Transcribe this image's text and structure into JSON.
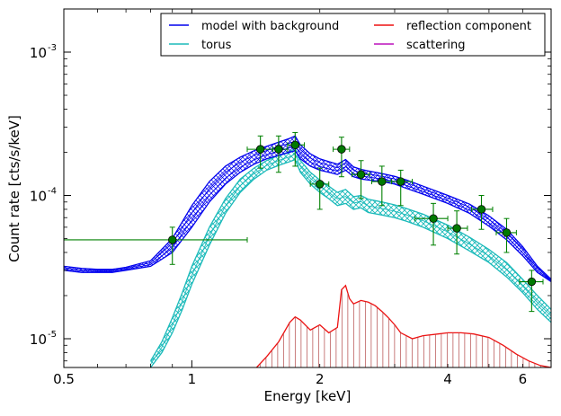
{
  "chart_data": {
    "type": "line",
    "xlabel": "Energy [keV]",
    "ylabel": "Count rate [cts/s/keV]",
    "xscale": "log",
    "yscale": "log",
    "xlim": [
      0.5,
      7.0
    ],
    "ylim": [
      6.3e-06,
      0.002
    ],
    "grid": false,
    "legend_placement": "top-right",
    "x_tick_labels": [
      {
        "value": 0.5,
        "label": "0.5"
      },
      {
        "value": 1,
        "label": "1"
      },
      {
        "value": 2,
        "label": "2"
      },
      {
        "value": 4,
        "label": "4"
      },
      {
        "value": 6,
        "label": "6"
      }
    ],
    "y_tick_labels": [
      {
        "value": 1e-05,
        "mant": "10",
        "exp": "-5"
      },
      {
        "value": 0.0001,
        "mant": "10",
        "exp": "-4"
      },
      {
        "value": 0.001,
        "mant": "10",
        "exp": "-3"
      }
    ],
    "legend": [
      {
        "label": "model with background",
        "color": "#0000ee"
      },
      {
        "label": "reflection component",
        "color": "#ee1111"
      },
      {
        "label": "torus",
        "color": "#1bbaba"
      },
      {
        "label": "scattering",
        "color": "#bb11bb"
      }
    ],
    "series": [
      {
        "name": "model with background",
        "color": "#0000ee",
        "x": [
          0.5,
          0.55,
          0.6,
          0.65,
          0.7,
          0.8,
          0.9,
          1.0,
          1.1,
          1.2,
          1.3,
          1.4,
          1.5,
          1.6,
          1.7,
          1.75,
          1.8,
          1.9,
          2.0,
          2.1,
          2.2,
          2.3,
          2.4,
          2.5,
          2.6,
          2.8,
          3.0,
          3.2,
          3.5,
          4.0,
          4.5,
          5.0,
          5.5,
          6.0,
          6.5,
          7.0
        ],
        "y_low": [
          3e-05,
          2.9e-05,
          2.9e-05,
          2.9e-05,
          3e-05,
          3.2e-05,
          4e-05,
          6e-05,
          9e-05,
          0.00012,
          0.000145,
          0.000165,
          0.00018,
          0.00019,
          0.0002,
          0.000205,
          0.00018,
          0.00016,
          0.00015,
          0.000145,
          0.00014,
          0.00015,
          0.000135,
          0.00013,
          0.000128,
          0.000125,
          0.00012,
          0.000112,
          0.000102,
          8.8e-05,
          7.5e-05,
          6.1e-05,
          4.9e-05,
          3.8e-05,
          2.9e-05,
          2.5e-05
        ],
        "y_high": [
          3.2e-05,
          3.1e-05,
          3.05e-05,
          3.05e-05,
          3.15e-05,
          3.5e-05,
          5e-05,
          8.5e-05,
          0.000125,
          0.00016,
          0.000185,
          0.000205,
          0.00022,
          0.000235,
          0.00025,
          0.00026,
          0.000225,
          0.000195,
          0.00018,
          0.000172,
          0.000165,
          0.000178,
          0.000158,
          0.000152,
          0.000148,
          0.000142,
          0.000136,
          0.000128,
          0.000116,
          0.0001,
          8.7e-05,
          7.2e-05,
          5.8e-05,
          4.4e-05,
          3.2e-05,
          2.6e-05
        ]
      },
      {
        "name": "torus",
        "color": "#1bbaba",
        "x": [
          0.8,
          0.85,
          0.9,
          0.95,
          1.0,
          1.1,
          1.2,
          1.3,
          1.4,
          1.5,
          1.6,
          1.7,
          1.75,
          1.8,
          1.9,
          2.0,
          2.1,
          2.2,
          2.3,
          2.4,
          2.5,
          2.6,
          2.8,
          3.0,
          3.2,
          3.5,
          4.0,
          4.5,
          5.0,
          5.5,
          6.0,
          6.5,
          7.0
        ],
        "y_low": [
          6.3e-06,
          8e-06,
          1.1e-05,
          1.6e-05,
          2.4e-05,
          4.5e-05,
          7.5e-05,
          0.000105,
          0.00013,
          0.00015,
          0.000162,
          0.000172,
          0.000178,
          0.000145,
          0.00012,
          0.000105,
          9.5e-05,
          8.5e-05,
          8.8e-05,
          8e-05,
          8.2e-05,
          7.6e-05,
          7.3e-05,
          7e-05,
          6.6e-05,
          6e-05,
          5e-05,
          4.1e-05,
          3.4e-05,
          2.7e-05,
          2.1e-05,
          1.6e-05,
          1.3e-05
        ],
        "y_high": [
          7e-06,
          9.5e-06,
          1.4e-05,
          2.1e-05,
          3.2e-05,
          6e-05,
          9.5e-05,
          0.00013,
          0.000155,
          0.000175,
          0.00019,
          0.000202,
          0.000212,
          0.000175,
          0.000145,
          0.000128,
          0.000116,
          0.000105,
          0.00011,
          9.8e-05,
          0.0001,
          9.4e-05,
          9e-05,
          8.6e-05,
          8.1e-05,
          7.4e-05,
          6.2e-05,
          5.1e-05,
          4.2e-05,
          3.4e-05,
          2.6e-05,
          2e-05,
          1.6e-05
        ]
      },
      {
        "name": "reflection component",
        "color": "#ee1111",
        "x": [
          1.42,
          1.5,
          1.6,
          1.7,
          1.75,
          1.8,
          1.9,
          2.0,
          2.1,
          2.2,
          2.25,
          2.3,
          2.35,
          2.4,
          2.5,
          2.6,
          2.7,
          2.8,
          2.9,
          3.0,
          3.1,
          3.3,
          3.5,
          3.8,
          4.0,
          4.3,
          4.6,
          5.0,
          5.4,
          5.8,
          6.2,
          6.6,
          7.0
        ],
        "y": [
          6.3e-06,
          7.5e-06,
          9.5e-06,
          1.3e-05,
          1.42e-05,
          1.35e-05,
          1.15e-05,
          1.25e-05,
          1.1e-05,
          1.2e-05,
          2.2e-05,
          2.35e-05,
          1.9e-05,
          1.75e-05,
          1.85e-05,
          1.8e-05,
          1.7e-05,
          1.55e-05,
          1.4e-05,
          1.25e-05,
          1.1e-05,
          1e-05,
          1.05e-05,
          1.08e-05,
          1.1e-05,
          1.1e-05,
          1.08e-05,
          1.02e-05,
          9e-06,
          7.8e-06,
          7e-06,
          6.5e-06,
          6.3e-06
        ]
      },
      {
        "name": "scattering",
        "color": "#bb11bb",
        "x": [],
        "y": []
      }
    ],
    "data_points": {
      "color": "#008000",
      "marker_fill": "#007a00",
      "points": [
        {
          "x": 0.9,
          "y": 4.9e-05,
          "xerr": [
            0.5,
            1.35
          ],
          "yerr": [
            3.3e-05,
            6e-05
          ]
        },
        {
          "x": 1.45,
          "y": 0.00021,
          "xerr": [
            1.35,
            1.55
          ],
          "yerr": [
            0.000155,
            0.00026
          ]
        },
        {
          "x": 1.6,
          "y": 0.00021,
          "xerr": [
            1.55,
            1.68
          ],
          "yerr": [
            0.000145,
            0.00026
          ]
        },
        {
          "x": 1.75,
          "y": 0.000225,
          "xerr": [
            1.68,
            1.84
          ],
          "yerr": [
            0.00016,
            0.000275
          ]
        },
        {
          "x": 2.0,
          "y": 0.00012,
          "xerr": [
            1.9,
            2.1
          ],
          "yerr": [
            8e-05,
            0.000155
          ]
        },
        {
          "x": 2.25,
          "y": 0.00021,
          "xerr": [
            2.15,
            2.35
          ],
          "yerr": [
            0.000135,
            0.000255
          ]
        },
        {
          "x": 2.5,
          "y": 0.00014,
          "xerr": [
            2.38,
            2.62
          ],
          "yerr": [
            9.5e-05,
            0.000175
          ]
        },
        {
          "x": 2.8,
          "y": 0.000125,
          "xerr": [
            2.65,
            2.95
          ],
          "yerr": [
            8.5e-05,
            0.00016
          ]
        },
        {
          "x": 3.1,
          "y": 0.000125,
          "xerr": [
            2.95,
            3.3
          ],
          "yerr": [
            8.5e-05,
            0.00015
          ]
        },
        {
          "x": 3.7,
          "y": 6.9e-05,
          "xerr": [
            3.35,
            4.0
          ],
          "yerr": [
            4.5e-05,
            8.8e-05
          ]
        },
        {
          "x": 4.2,
          "y": 5.9e-05,
          "xerr": [
            4.0,
            4.45
          ],
          "yerr": [
            3.9e-05,
            7.8e-05
          ]
        },
        {
          "x": 4.8,
          "y": 8e-05,
          "xerr": [
            4.55,
            5.1
          ],
          "yerr": [
            5.8e-05,
            0.0001
          ]
        },
        {
          "x": 5.5,
          "y": 5.5e-05,
          "xerr": [
            5.2,
            5.8
          ],
          "yerr": [
            4e-05,
            6.9e-05
          ]
        },
        {
          "x": 6.3,
          "y": 2.5e-05,
          "xerr": [
            5.9,
            6.7
          ],
          "yerr": [
            1.55e-05,
            3e-05
          ]
        }
      ]
    }
  }
}
